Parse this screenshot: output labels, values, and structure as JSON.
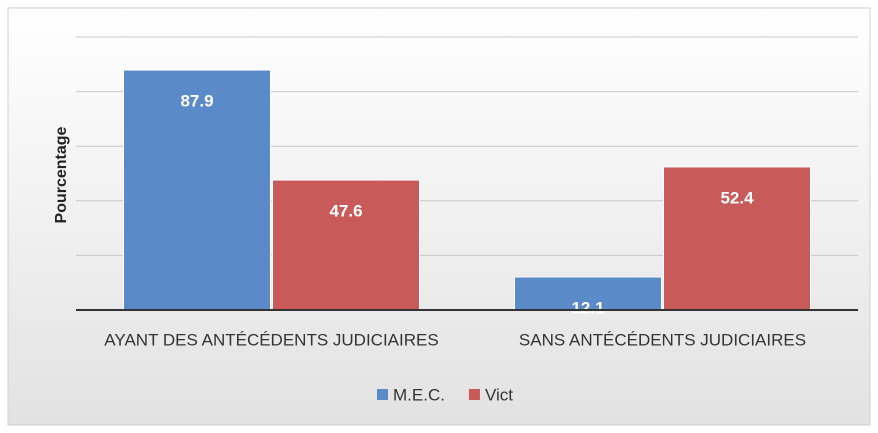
{
  "chart_data": {
    "type": "bar",
    "y_label": "Pourcentage",
    "categories": [
      "AYANT DES ANTÉCÉDENTS JUDICIAIRES",
      "SANS ANTÉCÉDENTS JUDICIAIRES"
    ],
    "series": [
      {
        "name": "M.E.C.",
        "color": "#5b8ac8",
        "values": [
          87.9,
          12.1
        ]
      },
      {
        "name": "Vict",
        "color": "#c85a5a",
        "values": [
          47.6,
          52.4
        ]
      }
    ],
    "ylim": [
      0,
      100
    ],
    "yticks": [
      0,
      20,
      40,
      60,
      80,
      100
    ],
    "grid": true,
    "legend": "bottom"
  }
}
